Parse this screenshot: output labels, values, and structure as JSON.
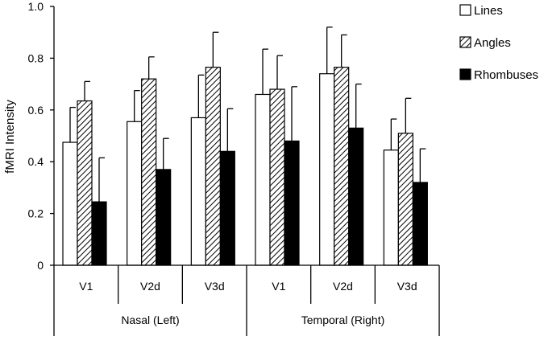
{
  "chart_data": {
    "type": "bar",
    "title": "",
    "xlabel": "",
    "ylabel": "fMRI Intensity",
    "ylim": [
      0,
      1.0
    ],
    "yticks": [
      0,
      0.2,
      0.4,
      0.6,
      0.8,
      1.0
    ],
    "ytick_labels": [
      "0",
      "0.2",
      "0.4",
      "0.6",
      "0.8",
      "1.0"
    ],
    "grid": false,
    "legend_position": "top-right",
    "categories": [
      "V1",
      "V2d",
      "V3d",
      "V1",
      "V2d",
      "V3d"
    ],
    "groups": [
      {
        "label": "Nasal (Left)",
        "categories": [
          "V1",
          "V2d",
          "V3d"
        ]
      },
      {
        "label": "Temporal (Right)",
        "categories": [
          "V1",
          "V2d",
          "V3d"
        ]
      }
    ],
    "series": [
      {
        "name": "Lines",
        "fill": "white",
        "values": [
          0.475,
          0.555,
          0.57,
          0.66,
          0.74,
          0.445
        ],
        "errors": [
          0.135,
          0.12,
          0.165,
          0.175,
          0.18,
          0.12
        ]
      },
      {
        "name": "Angles",
        "fill": "hatched",
        "values": [
          0.635,
          0.72,
          0.765,
          0.68,
          0.765,
          0.51
        ],
        "errors": [
          0.075,
          0.085,
          0.135,
          0.13,
          0.125,
          0.135
        ]
      },
      {
        "name": "Rhombuses",
        "fill": "black",
        "values": [
          0.245,
          0.37,
          0.44,
          0.48,
          0.53,
          0.32
        ],
        "errors": [
          0.17,
          0.12,
          0.165,
          0.21,
          0.17,
          0.13
        ]
      }
    ]
  },
  "colors": {
    "bar_black": "#000000",
    "bar_white": "#ffffff",
    "stroke": "#000000"
  }
}
